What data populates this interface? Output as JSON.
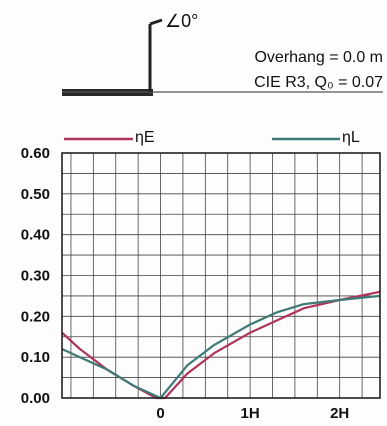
{
  "inset": {
    "angle_label": "∠0°",
    "overhang_text": "Overhang =  0.0 m",
    "cie_text": "CIE R3, Q₀ = 0.07"
  },
  "legend": {
    "items": [
      {
        "name": "ηE",
        "color": "#b0345a"
      },
      {
        "name": "ηL",
        "color": "#3f7a78"
      }
    ]
  },
  "chart_data": {
    "type": "line",
    "x_ticks": [
      {
        "label": "0",
        "value": 0
      },
      {
        "label": "1H",
        "value": 1
      },
      {
        "label": "2H",
        "value": 2
      }
    ],
    "xlim": [
      -1.1,
      2.45
    ],
    "ylim": [
      0,
      0.6
    ],
    "y_ticks": [
      "0.00",
      "0.10",
      "0.20",
      "0.30",
      "0.40",
      "0.50",
      "0.60"
    ],
    "y_tick_values": [
      0,
      0.1,
      0.2,
      0.3,
      0.4,
      0.5,
      0.6
    ],
    "grid": true,
    "legend_position": "top",
    "series": [
      {
        "name": "ηE",
        "color": "#b0345a",
        "points": [
          [
            -1.1,
            0.16
          ],
          [
            -0.9,
            0.12
          ],
          [
            -0.6,
            0.07
          ],
          [
            -0.3,
            0.03
          ],
          [
            -0.05,
            0.0
          ],
          [
            0.05,
            0.0
          ],
          [
            0.3,
            0.06
          ],
          [
            0.6,
            0.11
          ],
          [
            1.0,
            0.16
          ],
          [
            1.3,
            0.19
          ],
          [
            1.6,
            0.22
          ],
          [
            2.0,
            0.24
          ],
          [
            2.45,
            0.26
          ]
        ]
      },
      {
        "name": "ηL",
        "color": "#3f7a78",
        "points": [
          [
            -1.1,
            0.12
          ],
          [
            -0.9,
            0.1
          ],
          [
            -0.6,
            0.07
          ],
          [
            -0.3,
            0.03
          ],
          [
            0.0,
            0.0
          ],
          [
            0.3,
            0.08
          ],
          [
            0.6,
            0.13
          ],
          [
            1.0,
            0.18
          ],
          [
            1.3,
            0.21
          ],
          [
            1.6,
            0.23
          ],
          [
            2.0,
            0.24
          ],
          [
            2.45,
            0.25
          ]
        ]
      }
    ]
  }
}
